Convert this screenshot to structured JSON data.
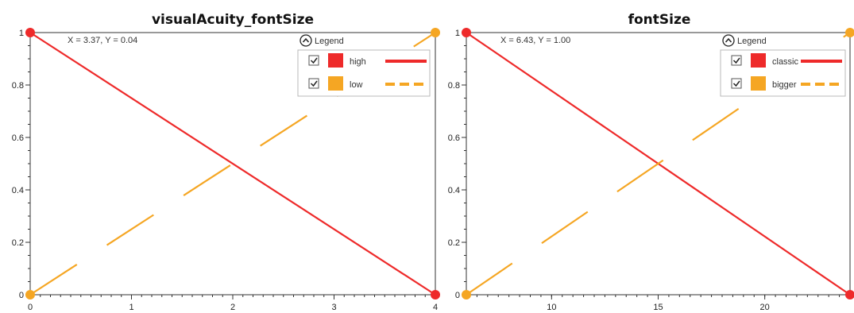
{
  "colors": {
    "red": "#ee2a2a",
    "orange": "#f5a623",
    "frame": "#333333",
    "legend_border": "#b8b8b8"
  },
  "legend": {
    "header": "Legend",
    "toggle_icon": "collapse-up-icon",
    "check_icon": "check-icon"
  },
  "chart_data": [
    {
      "type": "line",
      "title": "visualAcuity_fontSize",
      "coord_readout": "X = 3.37, Y = 0.04",
      "xlim": [
        0,
        4
      ],
      "ylim": [
        0,
        1
      ],
      "xticks": [
        "0",
        "1",
        "2",
        "3",
        "4"
      ],
      "yticks": [
        "0",
        "0.2",
        "0.4",
        "0.6",
        "0.8",
        "1"
      ],
      "grid": false,
      "legend_position": "top-right",
      "series": [
        {
          "name": "high",
          "color": "#ee2a2a",
          "style": "solid",
          "x": [
            0,
            4
          ],
          "y": [
            1,
            0
          ]
        },
        {
          "name": "low",
          "color": "#f5a623",
          "style": "dashed",
          "x": [
            0,
            4
          ],
          "y": [
            0,
            1
          ]
        }
      ]
    },
    {
      "type": "line",
      "title": "fontSize",
      "coord_readout": "X = 6.43, Y = 1.00",
      "xlim": [
        6,
        24
      ],
      "ylim": [
        0,
        1
      ],
      "xticks": [
        "10",
        "15",
        "20"
      ],
      "yticks": [
        "0",
        "0.2",
        "0.4",
        "0.6",
        "0.8",
        "1"
      ],
      "grid": false,
      "legend_position": "top-right",
      "series": [
        {
          "name": "classic",
          "color": "#ee2a2a",
          "style": "solid",
          "x": [
            6,
            24
          ],
          "y": [
            1,
            0
          ]
        },
        {
          "name": "bigger",
          "color": "#f5a623",
          "style": "dashed",
          "x": [
            6,
            24
          ],
          "y": [
            0,
            1
          ]
        }
      ]
    }
  ]
}
